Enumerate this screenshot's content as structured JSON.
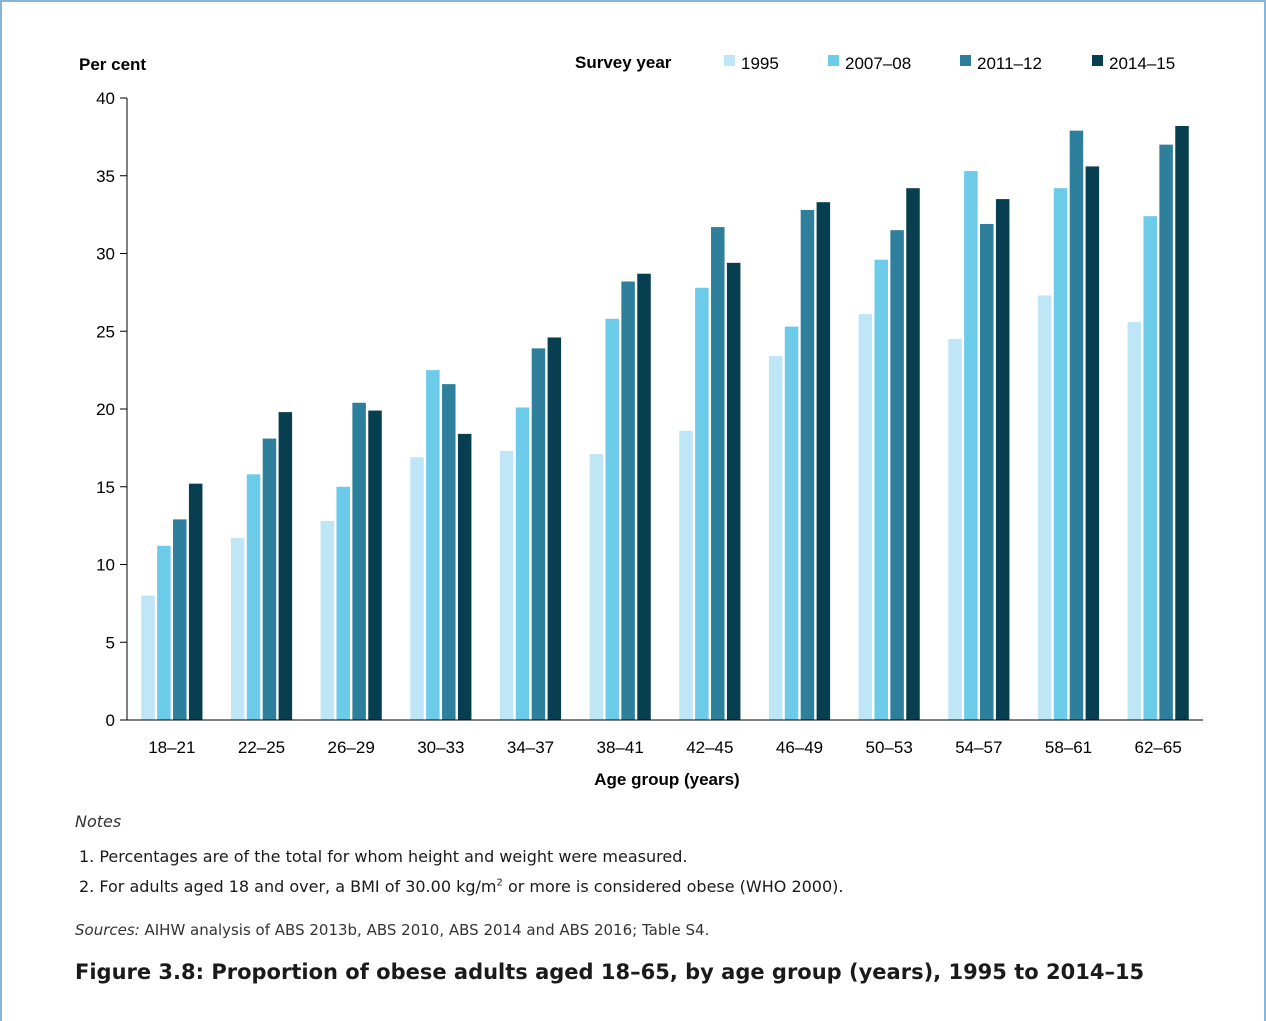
{
  "colors": {
    "frame_border": "#8ab4d6",
    "series": [
      "#bfe6f6",
      "#6ccbe8",
      "#2e7f9b",
      "#073f50"
    ],
    "axis": "#000000"
  },
  "chart_data": {
    "type": "bar",
    "ylabel": "Per cent",
    "xlabel": "Age group (years)",
    "legend_title": "Survey year",
    "legend_position": "top-right",
    "grid": false,
    "ylim": [
      0,
      40
    ],
    "yticks": [
      0,
      5,
      10,
      15,
      20,
      25,
      30,
      35,
      40
    ],
    "categories": [
      "18–21",
      "22–25",
      "26–29",
      "30–33",
      "34–37",
      "38–41",
      "42–45",
      "46–49",
      "50–53",
      "54–57",
      "58–61",
      "62–65"
    ],
    "series": [
      {
        "name": "1995",
        "values": [
          8.0,
          11.7,
          12.8,
          16.9,
          17.3,
          17.1,
          18.6,
          23.4,
          26.1,
          24.5,
          27.3,
          25.6
        ]
      },
      {
        "name": "2007–08",
        "values": [
          11.2,
          15.8,
          15.0,
          22.5,
          20.1,
          25.8,
          27.8,
          25.3,
          29.6,
          35.3,
          34.2,
          32.4
        ]
      },
      {
        "name": "2011–12",
        "values": [
          12.9,
          18.1,
          20.4,
          21.6,
          23.9,
          28.2,
          31.7,
          32.8,
          31.5,
          31.9,
          37.9,
          37.0
        ]
      },
      {
        "name": "2014–15",
        "values": [
          15.2,
          19.8,
          19.9,
          18.4,
          24.6,
          28.7,
          29.4,
          33.3,
          34.2,
          33.5,
          35.6,
          38.2
        ]
      }
    ]
  },
  "notes": {
    "label": "Notes",
    "line1": "1. Percentages are of the total for whom height and weight were measured.",
    "line2_pre": "2. For adults aged 18 and over, a BMI of 30.00 kg/m",
    "line2_sup": "2",
    "line2_post": " or more is considered obese (WHO 2000)."
  },
  "sources": {
    "label": "Sources:",
    "text": " AIHW analysis of ABS 2013b, ABS 2010, ABS 2014 and ABS 2016; Table S4."
  },
  "caption": "Figure 3.8: Proportion of obese adults aged 18–65, by age group (years), 1995 to 2014–15"
}
